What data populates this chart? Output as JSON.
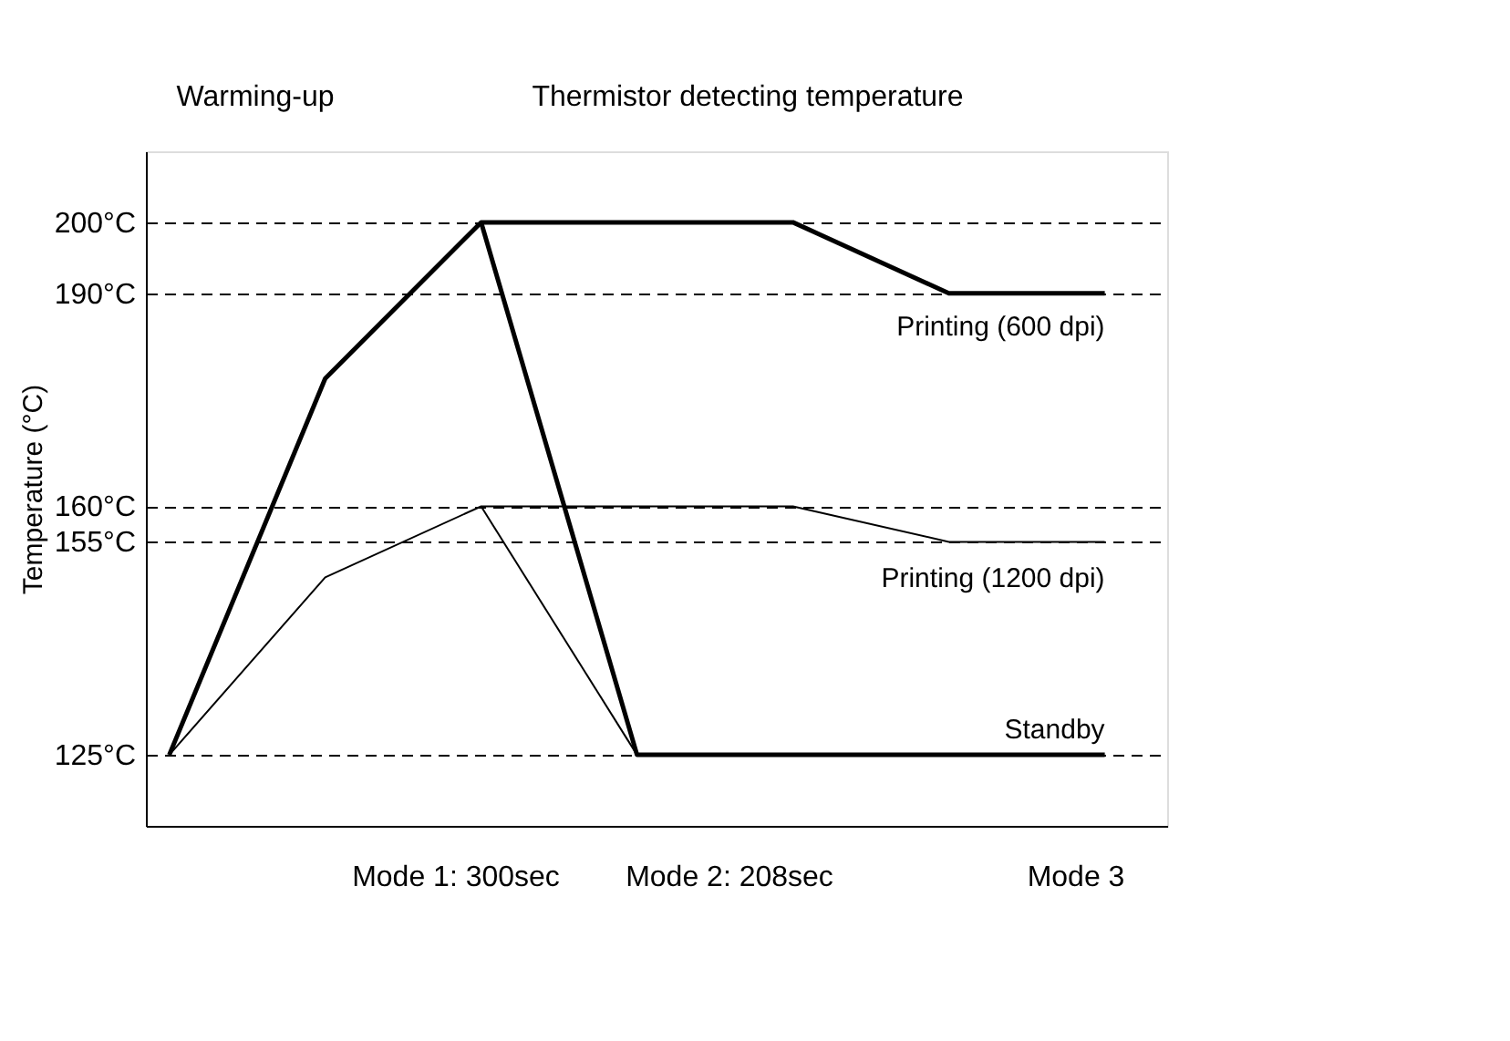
{
  "chart_data": {
    "type": "line",
    "ylabel": "Temperature (°C)",
    "categories": [
      null,
      null,
      null,
      null,
      null,
      null,
      null
    ],
    "series": [
      {
        "name": "Printing (600 dpi)",
        "color": "#000000",
        "values": [
          125,
          178,
          200,
          200,
          200,
          190,
          190
        ]
      },
      {
        "name": "Printing (1200 dpi)",
        "color": "#000000",
        "values": [
          125,
          150,
          160,
          160,
          160,
          155,
          155
        ]
      },
      {
        "name": "Standby",
        "color": "#000000",
        "values": [
          null,
          null,
          200,
          125,
          125,
          125,
          125
        ]
      },
      {
        "color": "#000000",
        "values": [
          null,
          null,
          160,
          125,
          null,
          null,
          null
        ]
      }
    ],
    "ylim": [
      115,
      210
    ],
    "yticks": [
      {
        "value": 125,
        "label": "125°C"
      },
      {
        "value": 155,
        "label": "155°C"
      },
      {
        "value": 160,
        "label": "160°C"
      },
      {
        "value": 190,
        "label": "190°C"
      },
      {
        "value": 200,
        "label": "200°C"
      }
    ],
    "grid": "y",
    "tick_labels": "y",
    "marker": "none",
    "line_style": "solid",
    "annotations": [
      "Warming-up",
      "Thermistor detecting temperature",
      "Mode 1: 300sec",
      "Mode 2: 208sec",
      "Mode 3"
    ]
  }
}
